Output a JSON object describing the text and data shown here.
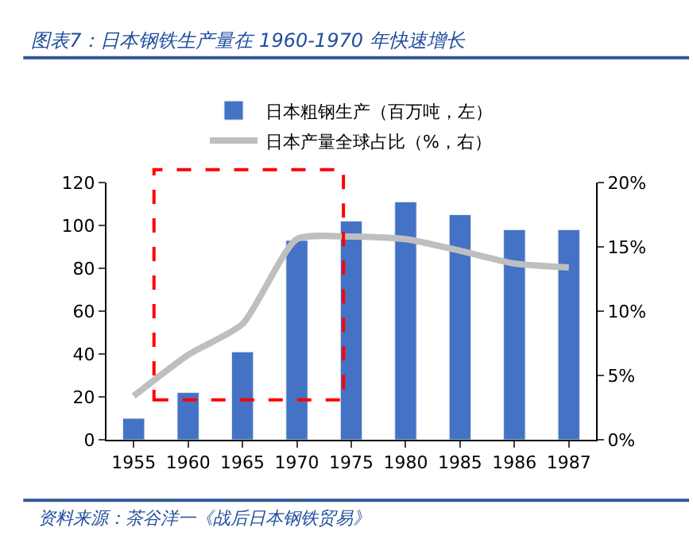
{
  "chart_data": {
    "type": "bar",
    "title": "图表7：日本钢铁生产量在 1960-1970 年快速增长",
    "categories": [
      "1955",
      "1960",
      "1965",
      "1970",
      "1975",
      "1980",
      "1985",
      "1986",
      "1987"
    ],
    "series": [
      {
        "name": "日本粗钢生产（百万吨，左）",
        "color": "#4472c4",
        "values": [
          10,
          22,
          41,
          93,
          102,
          111,
          105,
          98,
          98
        ]
      },
      {
        "name": "日本产量全球占比（%，右）",
        "type": "line",
        "axis": "y2",
        "color": "#bfbfbf",
        "values": [
          3.4,
          6.6,
          9.0,
          15.6,
          15.8,
          15.6,
          14.7,
          13.7,
          13.4
        ]
      }
    ],
    "ylim": [
      0,
      120
    ],
    "yticks": [
      0,
      20,
      40,
      60,
      80,
      100,
      120
    ],
    "y2lim": [
      0,
      20
    ],
    "y2ticks": [
      {
        "value": 0,
        "label": "0%"
      },
      {
        "value": 5,
        "label": "5%"
      },
      {
        "value": 10,
        "label": "10%"
      },
      {
        "value": 15,
        "label": "15%"
      },
      {
        "value": 20,
        "label": "20%"
      }
    ],
    "legend": "top",
    "grid": false,
    "marker": "none",
    "line_style": "solid",
    "annotations": [
      "资料来源：茶谷洋一《战后日本钢铁贸易》"
    ]
  }
}
